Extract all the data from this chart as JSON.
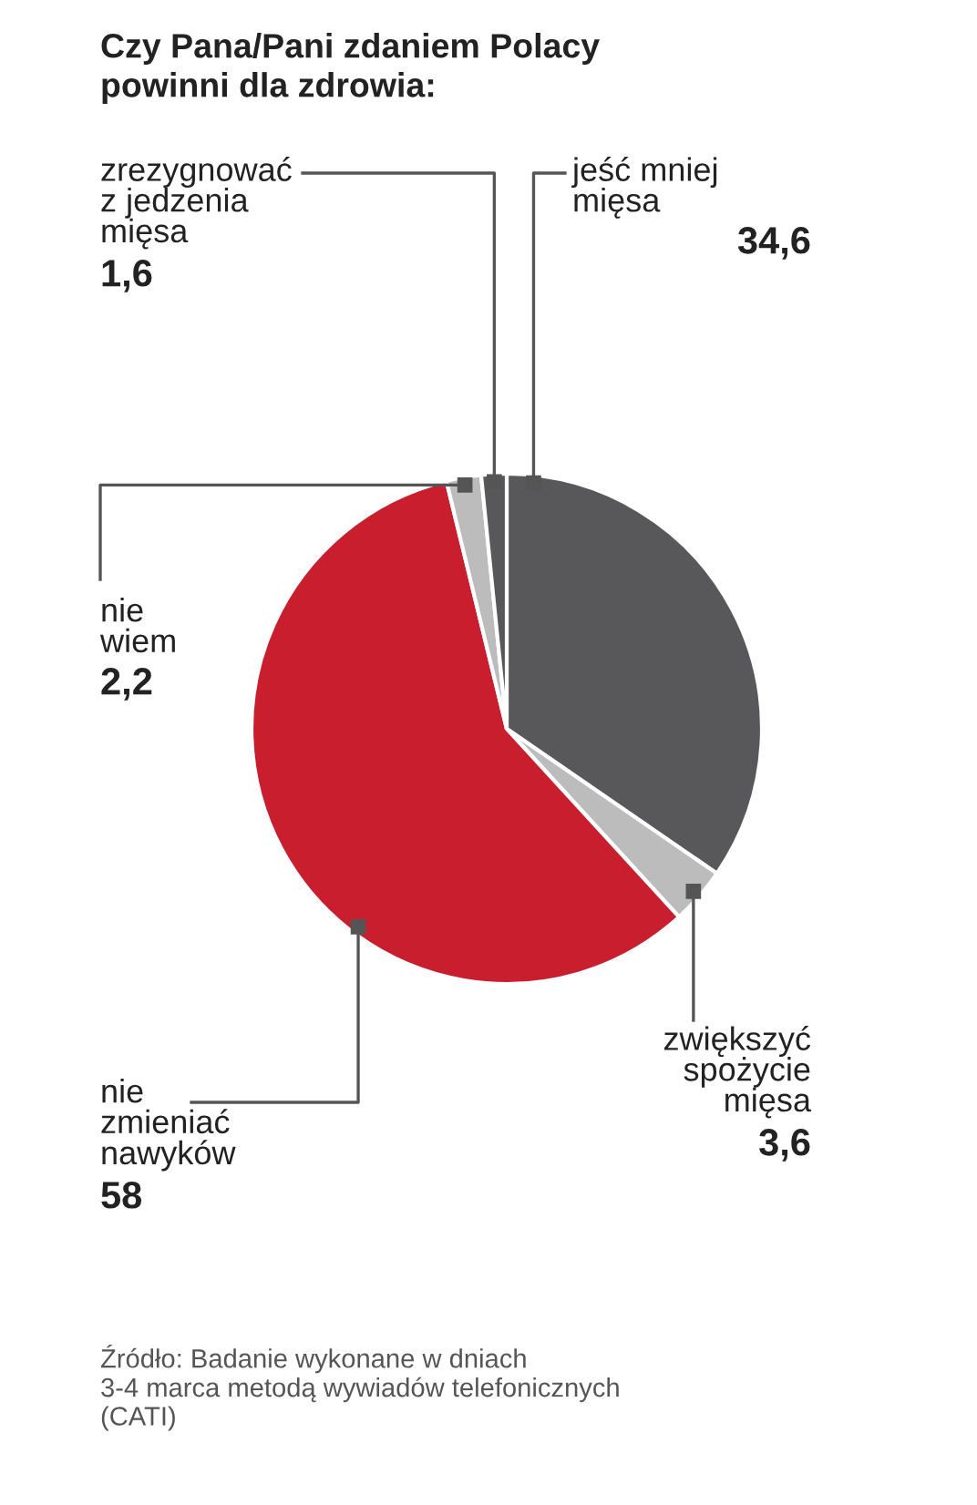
{
  "chart_data": {
    "type": "pie",
    "title": "Czy Pana/Pani zdaniem Polacy\npowinni dla zdrowia:",
    "categories": [
      "jeść mniej\nmięsa",
      "zwiększyć\nspożycie\nmięsa",
      "nie\nzmieniać\nnawyków",
      "nie\nwiem",
      "zrezygnować\nz jedzenia\nmięsa"
    ],
    "values": [
      34.6,
      3.6,
      58,
      2.2,
      1.6
    ],
    "value_labels": [
      "34,6",
      "3,6",
      "58",
      "2,2",
      "1,6"
    ],
    "colors": [
      "#58585a",
      "#bcbcbc",
      "#c81e2d",
      "#bcbcbc",
      "#58585a"
    ],
    "annotations": [
      "Źródło: Badanie wykonane w dniach\n3-4 marca metodą wywiadów telefonicznych\n(CATI)"
    ]
  }
}
